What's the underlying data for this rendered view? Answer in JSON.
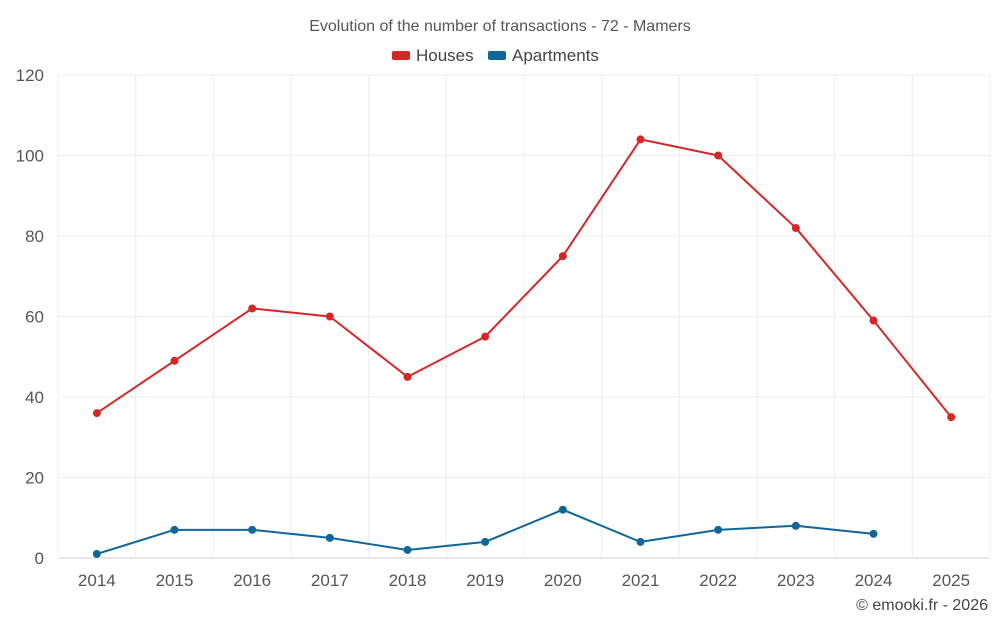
{
  "chart_data": {
    "type": "line",
    "title": "Evolution of the number of transactions - 72 - Mamers",
    "categories": [
      "2014",
      "2015",
      "2016",
      "2017",
      "2018",
      "2019",
      "2020",
      "2021",
      "2022",
      "2023",
      "2024",
      "2025"
    ],
    "series": [
      {
        "name": "Houses",
        "color": "#d62728",
        "values": [
          36,
          49,
          62,
          60,
          45,
          55,
          75,
          104,
          100,
          82,
          59,
          35
        ]
      },
      {
        "name": "Apartments",
        "color": "#0e6699",
        "values": [
          1,
          7,
          7,
          5,
          2,
          4,
          12,
          4,
          7,
          8,
          6,
          null
        ]
      }
    ],
    "yticks": [
      0,
      20,
      40,
      60,
      80,
      100,
      120
    ],
    "ylim": [
      0,
      120
    ],
    "xlabel": "",
    "ylabel": "",
    "grid": true,
    "legend": "top-center"
  },
  "credit": "© emooki.fr - 2026"
}
